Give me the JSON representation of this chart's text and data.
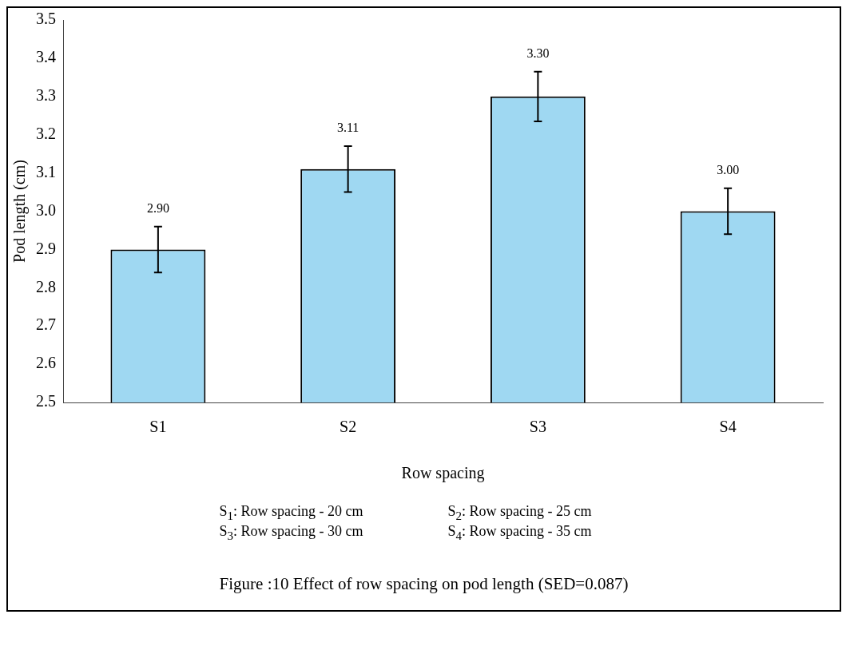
{
  "chart_data": {
    "type": "bar",
    "xlabel": "Row spacing",
    "ylabel": "Pod length (cm)",
    "categories": [
      "S1",
      "S2",
      "S3",
      "S4"
    ],
    "values": [
      2.9,
      3.11,
      3.3,
      3.0
    ],
    "value_labels": [
      "2.90",
      "3.11",
      "3.30",
      "3.00"
    ],
    "errors": [
      0.06,
      0.06,
      0.065,
      0.06
    ],
    "color": "#9fd8f2",
    "ylim": [
      2.5,
      3.5
    ],
    "yticks": [
      2.5,
      2.6,
      2.7,
      2.8,
      2.9,
      {
        "value": 3,
        "label": "3.0"
      },
      3.1,
      3.2,
      3.3,
      3.4,
      3.5
    ],
    "grid": false,
    "legend": false,
    "annotations": [
      "S$_{1}$: Row spacing - 20 cm",
      "S$_{2}$: Row spacing - 25 cm",
      "S$_{3}$: Row spacing - 30 cm",
      "S$_{4}$: Row spacing - 35 cm",
      "Figure :10 Effect of row spacing on pod length (SED=0.087)"
    ]
  }
}
